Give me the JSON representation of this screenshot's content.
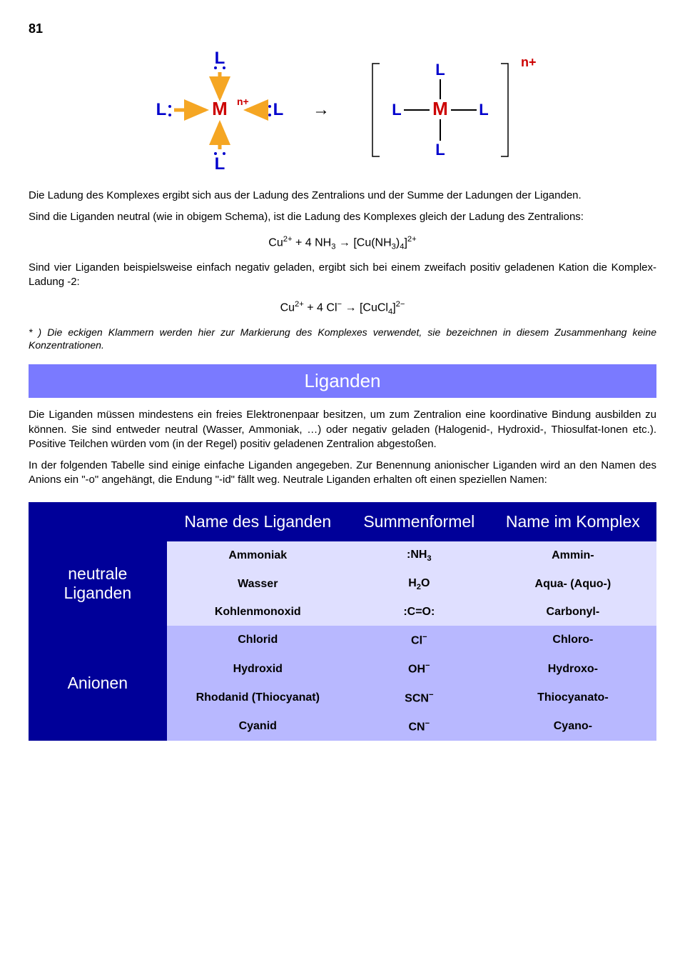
{
  "page_number": "81",
  "diagram": {
    "left": {
      "center": "M",
      "center_charge": "n+",
      "ligand": "L",
      "center_color": "#cc0000",
      "ligand_color": "#0000cc",
      "arrow_color": "#f5a623"
    },
    "arrow": "→",
    "right": {
      "center": "M",
      "ligand": "L",
      "charge": "n+",
      "center_color": "#cc0000",
      "ligand_color": "#0000cc",
      "charge_color": "#cc0000"
    }
  },
  "para1": "Die Ladung des Komplexes ergibt sich aus der Ladung des Zentralions und der Summe der Ladungen der Liganden.",
  "para2": "Sind die Liganden neutral (wie in obigem Schema), ist die Ladung des Komplexes gleich der Ladung des Zentralions:",
  "formula1_html": "Cu<sup>2+</sup> + 4 NH<sub>3</sub> → [Cu(NH<sub>3</sub>)<sub>4</sub>]<sup>2+</sup>",
  "para3": "Sind vier Liganden beispielsweise einfach negativ geladen, ergibt sich bei einem zweifach positiv geladenen Kation die Komplex-Ladung -2:",
  "formula2_html": "Cu<sup>2+</sup> + 4 Cl<sup>−</sup> → [CuCl<sub>4</sub>]<sup>2−</sup>",
  "note": "* ) Die eckigen Klammern werden hier zur Markierung des Komplexes verwendet, sie bezeichnen in diesem Zusammenhang keine Konzentrationen.",
  "section_title": "Liganden",
  "para4": "Die Liganden müssen mindestens ein freies Elektronenpaar besitzen, um zum Zentralion eine koordinative Bindung ausbilden zu können. Sie sind entweder neutral (Wasser, Ammoniak, …) oder negativ geladen (Halogenid-, Hydroxid-, Thiosulfat-Ionen etc.). Positive Teilchen würden vom (in der Regel) positiv geladenen Zentralion abgestoßen.",
  "para5": "In der folgenden Tabelle sind einige einfache Liganden angegeben. Zur Benennung anionischer Liganden wird an den Namen des Anions ein \"-o\" angehängt, die Endung \"-id\" fällt weg. Neutrale Liganden erhalten oft einen speziellen Namen:",
  "table": {
    "headers": [
      "",
      "Name des Liganden",
      "Summenformel",
      "Name im Komplex"
    ],
    "groups": [
      {
        "label": "neutrale Liganden",
        "row_class": "data-light",
        "rows": [
          {
            "name": "Ammoniak",
            "formula_html": ":NH<sub>3</sub>",
            "complex": "Ammin-"
          },
          {
            "name": "Wasser",
            "formula_html": "H<sub>2</sub>O",
            "complex": "Aqua- (Aquo-)"
          },
          {
            "name": "Kohlenmonoxid",
            "formula_html": ":C=O:",
            "complex": "Carbonyl-"
          }
        ]
      },
      {
        "label": "Anionen",
        "row_class": "data-med",
        "rows": [
          {
            "name": "Chlorid",
            "formula_html": "Cl<sup>−</sup>",
            "complex": "Chloro-"
          },
          {
            "name": "Hydroxid",
            "formula_html": "OH<sup>−</sup>",
            "complex": "Hydroxo-"
          },
          {
            "name": "Rhodanid (Thiocyanat)",
            "formula_html": "SCN<sup>−</sup>",
            "complex": "Thiocyanato-"
          },
          {
            "name": "Cyanid",
            "formula_html": "CN<sup>−</sup>",
            "complex": "Cyano-"
          }
        ]
      }
    ]
  },
  "colors": {
    "header_bg": "#000099",
    "light_bg": "#dfdfff",
    "med_bg": "#b8b8ff",
    "section_bg": "#7a7aff"
  }
}
